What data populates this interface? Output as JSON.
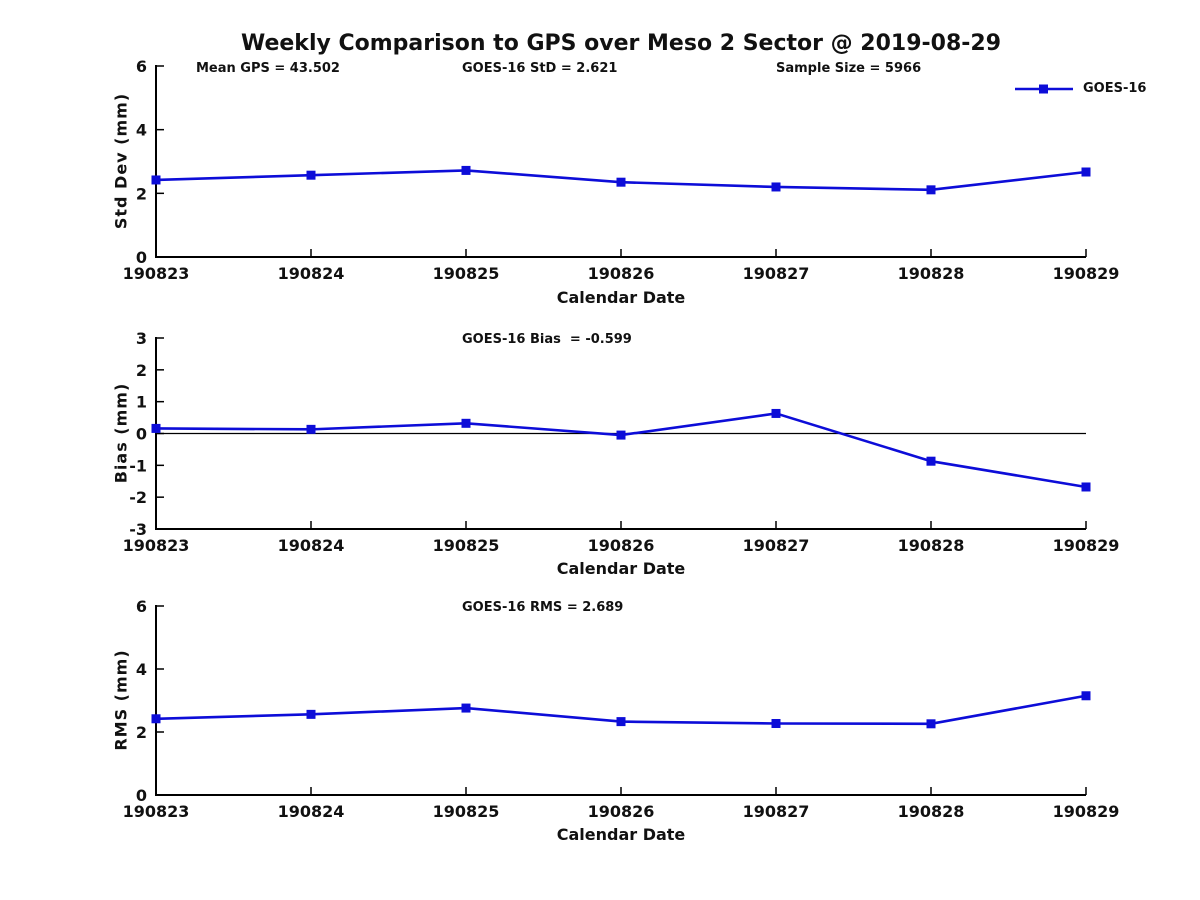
{
  "title": "Weekly Comparison to GPS over Meso 2 Sector @ 2019-08-29",
  "colors": {
    "series_blue": "#0d0dd8",
    "axis": "#000000",
    "background": "#ffffff"
  },
  "stats": {
    "mean_gps": 43.502,
    "goes16_std": 2.621,
    "sample_size": 5966,
    "goes16_bias": -0.599,
    "goes16_rms": 2.689
  },
  "legend": {
    "label": "GOES-16",
    "marker": "square"
  },
  "chart_data": [
    {
      "name": "std-dev",
      "type": "line",
      "ylabel": "Std Dev (mm)",
      "xlabel": "Calendar Date",
      "categories": [
        "190823",
        "190824",
        "190825",
        "190826",
        "190827",
        "190828",
        "190829"
      ],
      "series": [
        {
          "name": "GOES-16",
          "color": "#0d0dd8",
          "marker": "square",
          "values": [
            2.42,
            2.57,
            2.72,
            2.35,
            2.2,
            2.11,
            2.67
          ]
        }
      ],
      "ylim": [
        0,
        6
      ],
      "yticks": [
        0,
        2,
        4,
        6
      ],
      "zero_line": false,
      "grid": false,
      "legend_position": "top-right",
      "annotations": [
        "Mean GPS = 43.502",
        "GOES-16 StD = 2.621",
        "Sample Size = 5966"
      ]
    },
    {
      "name": "bias",
      "type": "line",
      "ylabel": "Bias (mm)",
      "xlabel": "Calendar Date",
      "categories": [
        "190823",
        "190824",
        "190825",
        "190826",
        "190827",
        "190828",
        "190829"
      ],
      "series": [
        {
          "name": "GOES-16",
          "color": "#0d0dd8",
          "marker": "square",
          "values": [
            0.16,
            0.13,
            0.32,
            -0.05,
            0.63,
            -0.87,
            -1.68
          ]
        }
      ],
      "ylim": [
        -3,
        3
      ],
      "yticks": [
        3,
        2,
        1,
        0,
        -1,
        -2,
        -3
      ],
      "zero_line": true,
      "grid": false,
      "legend_position": "none",
      "annotations": [
        "GOES-16 Bias  = -0.599"
      ]
    },
    {
      "name": "rms",
      "type": "line",
      "ylabel": "RMS (mm)",
      "xlabel": "Calendar Date",
      "categories": [
        "190823",
        "190824",
        "190825",
        "190826",
        "190827",
        "190828",
        "190829"
      ],
      "series": [
        {
          "name": "GOES-16",
          "color": "#0d0dd8",
          "marker": "square",
          "values": [
            2.42,
            2.56,
            2.76,
            2.33,
            2.27,
            2.26,
            3.15
          ]
        }
      ],
      "ylim": [
        0,
        6
      ],
      "yticks": [
        0,
        2,
        4,
        6
      ],
      "zero_line": false,
      "grid": false,
      "legend_position": "none",
      "annotations": [
        "GOES-16 RMS = 2.689"
      ]
    }
  ]
}
